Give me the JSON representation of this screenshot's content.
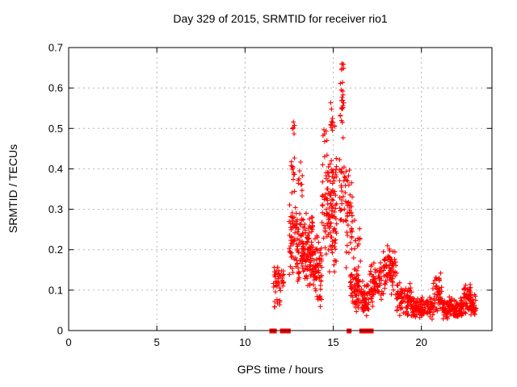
{
  "chart_data": {
    "type": "scatter",
    "title": "Day 329 of 2015, SRMTID for receiver rio1",
    "xlabel": "GPS time / hours",
    "ylabel": "SRMTID / TECUs",
    "xlim": [
      0,
      24
    ],
    "ylim": [
      0,
      0.7
    ],
    "xticks": [
      {
        "v": 0,
        "label": "0"
      },
      {
        "v": 5,
        "label": "5"
      },
      {
        "v": 10,
        "label": "10"
      },
      {
        "v": 15,
        "label": "15"
      },
      {
        "v": 20,
        "label": "20"
      }
    ],
    "yticks": [
      {
        "v": 0.0,
        "label": "0"
      },
      {
        "v": 0.1,
        "label": "0.1"
      },
      {
        "v": 0.2,
        "label": "0.2"
      },
      {
        "v": 0.3,
        "label": "0.3"
      },
      {
        "v": 0.4,
        "label": "0.4"
      },
      {
        "v": 0.5,
        "label": "0.5"
      },
      {
        "v": 0.6,
        "label": "0.6"
      },
      {
        "v": 0.7,
        "label": "0.7"
      }
    ],
    "grid": true,
    "legend": "none",
    "colors": {
      "marker": "#ff0000",
      "grid": "#b5b5b5",
      "axis": "#000000",
      "background": "#ffffff"
    },
    "series": [
      {
        "name": "SRMTID",
        "marker": "plus",
        "color": "#ff0000",
        "point_clusters": [
          {
            "x0": 11.6,
            "x1": 12.2,
            "y0": 0.085,
            "y1": 0.165,
            "n": 38
          },
          {
            "x0": 11.65,
            "x1": 12.0,
            "y0": 0.05,
            "y1": 0.09,
            "n": 8
          },
          {
            "x0": 12.5,
            "x1": 12.9,
            "y0": 0.12,
            "y1": 0.33,
            "n": 45
          },
          {
            "x0": 12.62,
            "x1": 12.82,
            "y0": 0.33,
            "y1": 0.45,
            "n": 12
          },
          {
            "x0": 12.68,
            "x1": 12.8,
            "y0": 0.48,
            "y1": 0.535,
            "n": 6
          },
          {
            "x0": 12.9,
            "x1": 13.4,
            "y0": 0.1,
            "y1": 0.32,
            "n": 70
          },
          {
            "x0": 13.0,
            "x1": 13.25,
            "y0": 0.32,
            "y1": 0.46,
            "n": 10
          },
          {
            "x0": 13.4,
            "x1": 13.85,
            "y0": 0.08,
            "y1": 0.3,
            "n": 80
          },
          {
            "x0": 13.85,
            "x1": 14.35,
            "y0": 0.05,
            "y1": 0.24,
            "n": 70
          },
          {
            "x0": 14.35,
            "x1": 14.7,
            "y0": 0.18,
            "y1": 0.45,
            "n": 40
          },
          {
            "x0": 14.4,
            "x1": 14.65,
            "y0": 0.45,
            "y1": 0.52,
            "n": 6
          },
          {
            "x0": 14.7,
            "x1": 15.2,
            "y0": 0.1,
            "y1": 0.45,
            "n": 85
          },
          {
            "x0": 14.85,
            "x1": 15.1,
            "y0": 0.45,
            "y1": 0.6,
            "n": 12
          },
          {
            "x0": 15.35,
            "x1": 15.7,
            "y0": 0.25,
            "y1": 0.5,
            "n": 32
          },
          {
            "x0": 15.4,
            "x1": 15.62,
            "y0": 0.5,
            "y1": 0.625,
            "n": 18
          },
          {
            "x0": 15.45,
            "x1": 15.6,
            "y0": 0.625,
            "y1": 0.685,
            "n": 6
          },
          {
            "x0": 15.7,
            "x1": 16.1,
            "y0": 0.15,
            "y1": 0.42,
            "n": 45
          },
          {
            "x0": 15.95,
            "x1": 16.5,
            "y0": 0.04,
            "y1": 0.16,
            "n": 65
          },
          {
            "x0": 16.15,
            "x1": 16.55,
            "y0": 0.16,
            "y1": 0.3,
            "n": 12
          },
          {
            "x0": 16.55,
            "x1": 17.05,
            "y0": 0.03,
            "y1": 0.13,
            "n": 55
          },
          {
            "x0": 17.05,
            "x1": 17.8,
            "y0": 0.05,
            "y1": 0.18,
            "n": 70
          },
          {
            "x0": 17.8,
            "x1": 18.6,
            "y0": 0.08,
            "y1": 0.215,
            "n": 75
          },
          {
            "x0": 18.6,
            "x1": 19.45,
            "y0": 0.03,
            "y1": 0.125,
            "n": 80
          },
          {
            "x0": 19.45,
            "x1": 20.65,
            "y0": 0.02,
            "y1": 0.09,
            "n": 115
          },
          {
            "x0": 20.65,
            "x1": 21.15,
            "y0": 0.04,
            "y1": 0.147,
            "n": 50
          },
          {
            "x0": 21.15,
            "x1": 22.35,
            "y0": 0.025,
            "y1": 0.085,
            "n": 120
          },
          {
            "x0": 22.35,
            "x1": 22.8,
            "y0": 0.04,
            "y1": 0.123,
            "n": 55
          },
          {
            "x0": 22.8,
            "x1": 23.1,
            "y0": 0.03,
            "y1": 0.09,
            "n": 35
          }
        ],
        "zero_line_squares_x": [
          11.52,
          11.66,
          12.12,
          12.28,
          12.45,
          15.9,
          16.62,
          16.88,
          17.15
        ]
      }
    ]
  }
}
